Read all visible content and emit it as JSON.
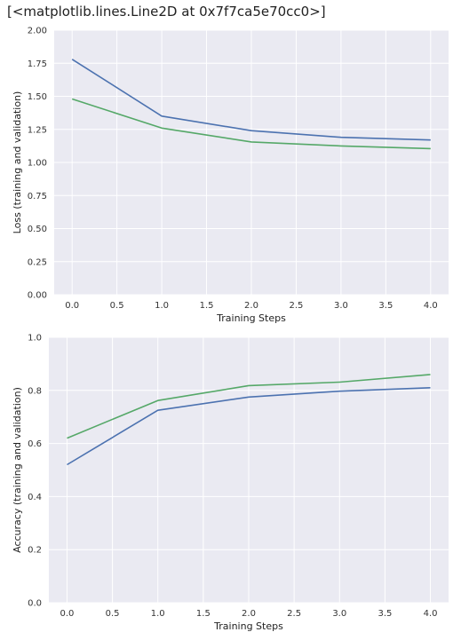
{
  "output_text": "[<matplotlib.lines.Line2D at 0x7f7ca5e70cc0>]",
  "colors": {
    "plot_bg": "#eaeaf2",
    "grid": "#ffffff",
    "series_blue": "#4c72b0",
    "series_green": "#55a868"
  },
  "chart_data": [
    {
      "type": "line",
      "title": "",
      "xlabel": "Training Steps",
      "ylabel": "Loss (training and validation)",
      "x": [
        0,
        1,
        2,
        3,
        4
      ],
      "xticks": [
        "0.0",
        "0.5",
        "1.0",
        "1.5",
        "2.0",
        "2.5",
        "3.0",
        "3.5",
        "4.0"
      ],
      "yticks": [
        "0.00",
        "0.25",
        "0.50",
        "0.75",
        "1.00",
        "1.25",
        "1.50",
        "1.75",
        "2.00"
      ],
      "xlim": [
        -0.2,
        4.2
      ],
      "ylim": [
        0,
        2.0
      ],
      "grid": true,
      "series": [
        {
          "color": "#4c72b0",
          "values": [
            1.78,
            1.35,
            1.24,
            1.19,
            1.17
          ]
        },
        {
          "color": "#55a868",
          "values": [
            1.48,
            1.26,
            1.155,
            1.125,
            1.105
          ]
        }
      ]
    },
    {
      "type": "line",
      "title": "",
      "xlabel": "Training Steps",
      "ylabel": "Accuracy (training and validation)",
      "x": [
        0,
        1,
        2,
        3,
        4
      ],
      "xticks": [
        "0.0",
        "0.5",
        "1.0",
        "1.5",
        "2.0",
        "2.5",
        "3.0",
        "3.5",
        "4.0"
      ],
      "yticks": [
        "0.0",
        "0.2",
        "0.4",
        "0.6",
        "0.8",
        "1.0"
      ],
      "xlim": [
        -0.2,
        4.2
      ],
      "ylim": [
        0,
        1.0
      ],
      "grid": true,
      "series": [
        {
          "color": "#4c72b0",
          "values": [
            0.52,
            0.725,
            0.775,
            0.797,
            0.81
          ]
        },
        {
          "color": "#55a868",
          "values": [
            0.62,
            0.762,
            0.818,
            0.831,
            0.86
          ]
        }
      ]
    }
  ]
}
